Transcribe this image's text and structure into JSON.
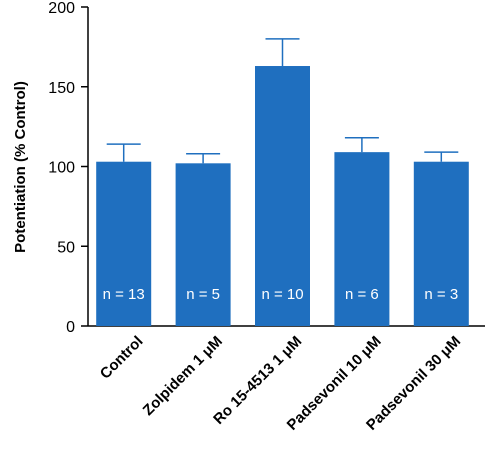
{
  "chart_data": {
    "type": "bar",
    "title": "",
    "xlabel": "",
    "ylabel": "Potentiation (% Control)",
    "ylim": [
      0,
      200
    ],
    "yticks": [
      0,
      50,
      100,
      150,
      200
    ],
    "grid": false,
    "legend": "none",
    "categories": [
      "Control",
      "Zolpidem 1 μM",
      "Ro 15-4513 1 μM",
      "Padsevonil 10 μM",
      "Padsevonil 30 μM"
    ],
    "values": [
      103,
      102,
      163,
      109,
      103
    ],
    "errors": [
      11,
      6,
      17,
      9,
      6
    ],
    "annotations": [
      "n = 13",
      "n = 5",
      "n = 10",
      "n = 6",
      "n = 3"
    ],
    "bar_color": "#1f6fbf"
  }
}
